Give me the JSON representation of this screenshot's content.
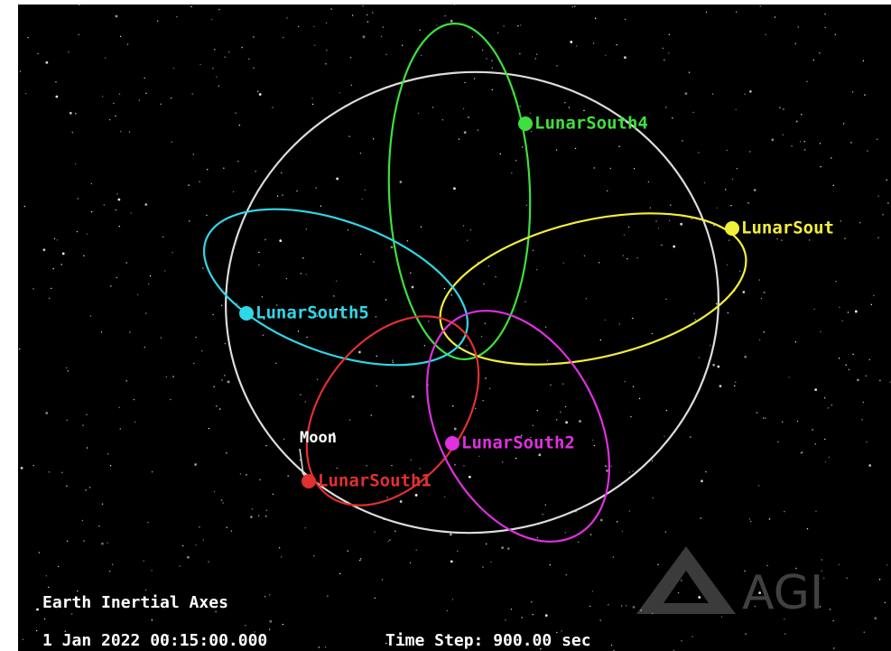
{
  "satellites": [
    {
      "label": "LunarSouth4",
      "color": "#3ee03e"
    },
    {
      "label": "LunarSout",
      "color": "#f2ef3a"
    },
    {
      "label": "LunarSouth5",
      "color": "#2fd8e8"
    },
    {
      "label": "LunarSouth2",
      "color": "#e030e0"
    },
    {
      "label": "LunarSouth1",
      "color": "#e03030"
    }
  ],
  "moon_label": "Moon",
  "overlay": {
    "axes": "Earth Inertial Axes",
    "time": "1 Jan 2022 00:15:00.000",
    "time_step": "Time Step: 900.00 sec"
  },
  "logo": "AGI"
}
